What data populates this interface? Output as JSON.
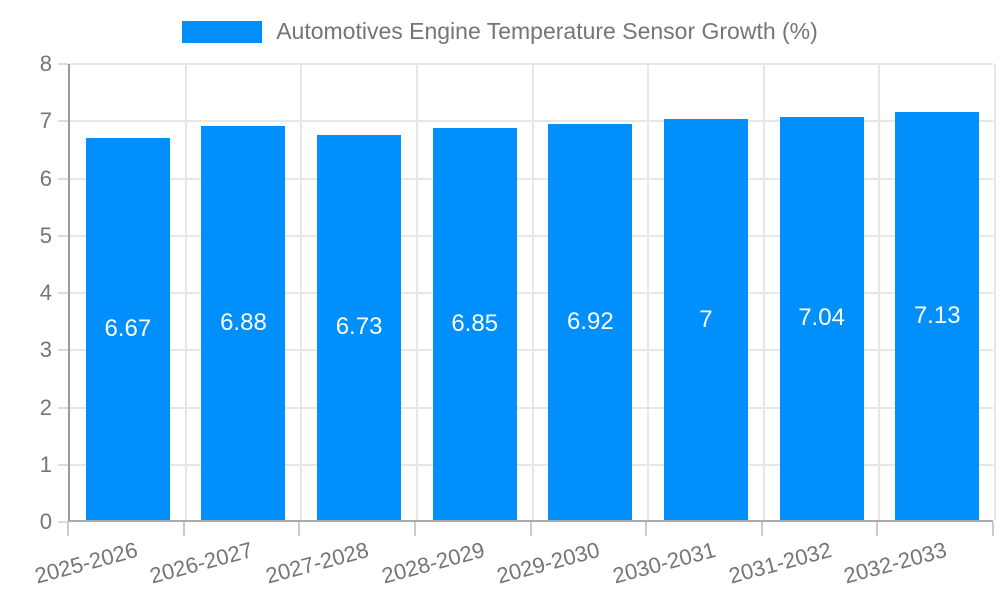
{
  "chart_data": {
    "type": "bar",
    "title": "Automotives Engine Temperature Sensor Growth (%)",
    "categories": [
      "2025-2026",
      "2026-2027",
      "2027-2028",
      "2028-2029",
      "2029-2030",
      "2030-2031",
      "2031-2032",
      "2032-2033"
    ],
    "values": [
      6.67,
      6.88,
      6.73,
      6.85,
      6.92,
      7,
      7.04,
      7.13
    ],
    "value_labels": [
      "6.67",
      "6.88",
      "6.73",
      "6.85",
      "6.92",
      "7",
      "7.04",
      "7.13"
    ],
    "xlabel": "",
    "ylabel": "",
    "ylim": [
      0,
      8
    ],
    "ytick_step": 1,
    "yticks": [
      "0",
      "1",
      "2",
      "3",
      "4",
      "5",
      "6",
      "7",
      "8"
    ],
    "grid": true,
    "legend_position": "top",
    "colors": {
      "bar": "#008ffb",
      "grid": "#e7e7e7",
      "axis": "#a0a0a0",
      "label_text": "#757575",
      "value_text": "#ffffff"
    }
  }
}
